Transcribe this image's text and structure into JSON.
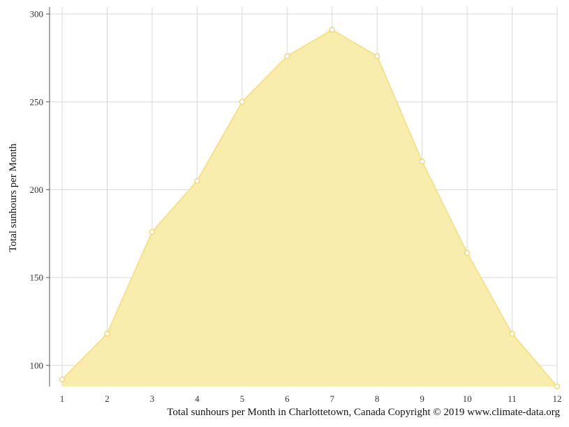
{
  "chart_data": {
    "type": "area",
    "x": [
      1,
      2,
      3,
      4,
      5,
      6,
      7,
      8,
      9,
      10,
      11,
      12
    ],
    "series": [
      {
        "values": [
          92,
          118,
          176,
          205,
          250,
          276,
          291,
          276,
          216,
          164,
          118,
          88
        ]
      }
    ],
    "ylabel": "Total sunhours per Month",
    "caption": "Total sunhours per Month in Charlottetown, Canada Copyright © 2019 www.climate-data.org",
    "xlim": [
      1,
      12
    ],
    "ylim": [
      88,
      304
    ],
    "yticks": [
      100,
      150,
      200,
      250,
      300
    ],
    "grid": true,
    "colors": {
      "fill": "#f9ecaa",
      "line": "#f7e08a",
      "marker_edge": "#f2d779",
      "grid": "#d9d9d9",
      "axis": "#555555"
    }
  }
}
